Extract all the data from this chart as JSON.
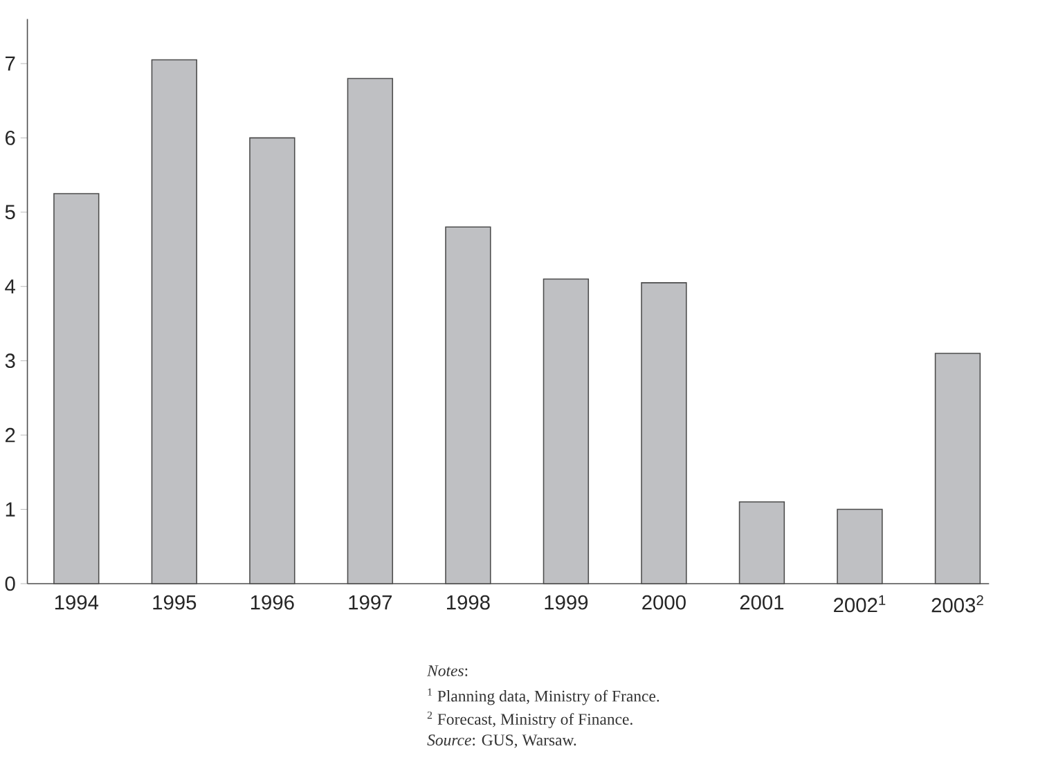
{
  "chart_data": {
    "type": "bar",
    "categories": [
      "1994",
      "1995",
      "1996",
      "1997",
      "1998",
      "1999",
      "2000",
      "2001",
      "2002$^{1}$",
      "2003$^{2}$"
    ],
    "values": [
      5.25,
      7.05,
      6.0,
      6.8,
      4.8,
      4.1,
      4.05,
      1.1,
      1.0,
      3.1
    ],
    "color": "#bfc0c3",
    "ylim": [
      0,
      7.6
    ],
    "yticks": [
      0,
      1,
      2,
      3,
      4,
      5,
      6,
      7
    ],
    "annotations": [
      "*Notes*:",
      "$^{1}$ Planning data, Ministry of France.",
      "$^{2}$ Forecast, Ministry of Finance.",
      "*Source*: GUS, Warsaw."
    ]
  }
}
